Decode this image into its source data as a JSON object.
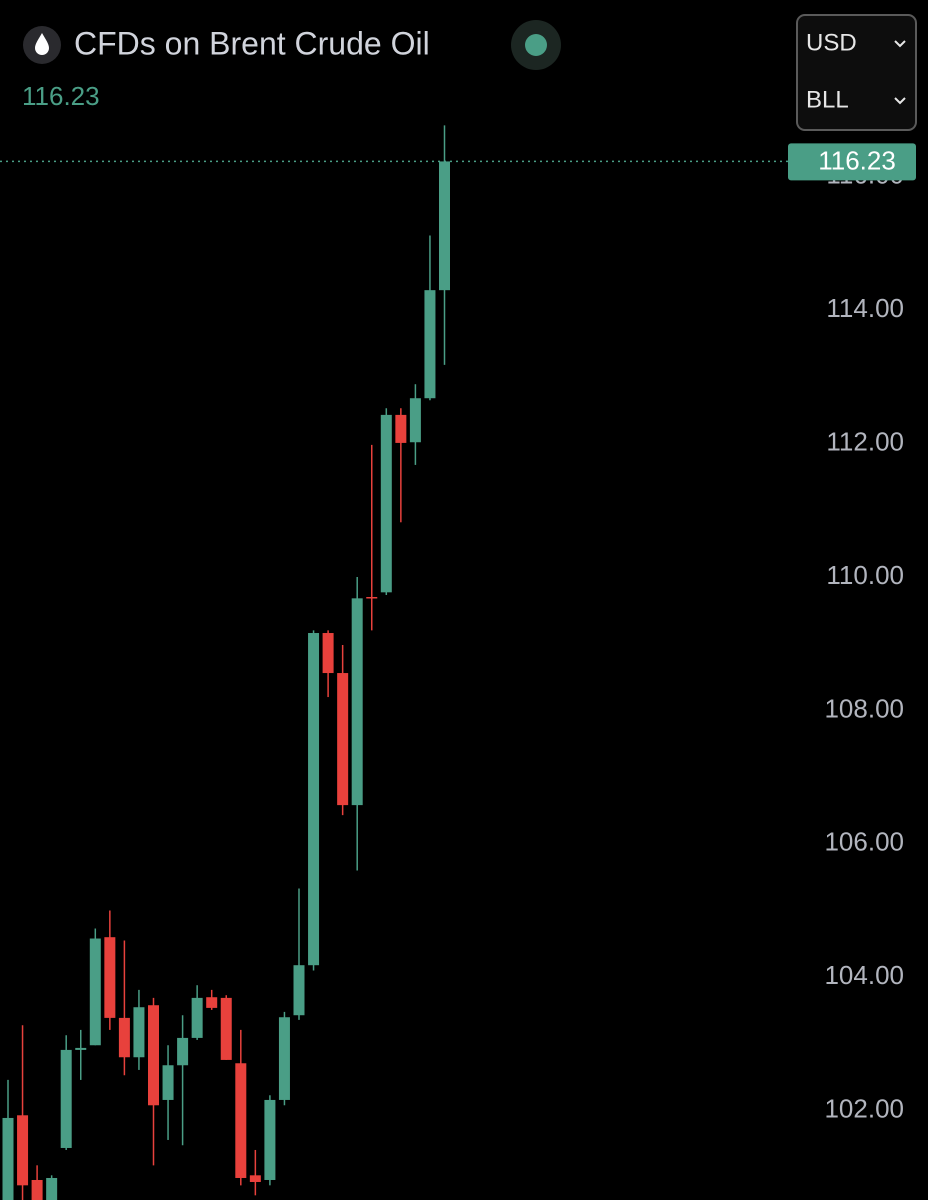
{
  "controls": [
    "USD",
    "BLL"
  ],
  "chart_data": {
    "type": "candlestick",
    "title": "CFDs on Brent Crude Oil",
    "up_color": "#4a9e86",
    "down_color": "#e8413c",
    "ylim": [
      100.66,
      118.65
    ],
    "yticks": [
      {
        "value": 102,
        "label": "102.00"
      },
      {
        "value": 104,
        "label": "104.00"
      },
      {
        "value": 106,
        "label": "106.00"
      },
      {
        "value": 108,
        "label": "108.00"
      },
      {
        "value": 110,
        "label": "110.00"
      },
      {
        "value": 112,
        "label": "112.00"
      },
      {
        "value": 114,
        "label": "114.00"
      },
      {
        "value": 116,
        "label": "116.00"
      }
    ],
    "open": [
      100.51,
      101.93,
      100.96,
      100.66,
      101.44,
      102.91,
      102.98,
      104.6,
      103.39,
      102.8,
      103.58,
      102.16,
      102.68,
      103.09,
      103.7,
      103.69,
      102.71,
      101.03,
      100.96,
      102.16,
      103.43,
      104.18,
      109.16,
      108.56,
      106.58,
      109.7,
      109.77,
      112.43,
      112.02,
      112.68,
      114.3
    ],
    "high": [
      102.46,
      103.28,
      101.18,
      101.03,
      103.13,
      103.21,
      104.73,
      105.0,
      104.55,
      103.81,
      103.69,
      102.98,
      103.43,
      103.88,
      103.81,
      103.73,
      103.21,
      101.41,
      102.23,
      103.48,
      105.33,
      109.2,
      109.2,
      108.98,
      110.0,
      111.98,
      112.53,
      112.53,
      112.89,
      115.12,
      116.77
    ],
    "low": [
      100.45,
      100.66,
      100.6,
      100.6,
      101.41,
      102.46,
      102.98,
      103.21,
      102.53,
      102.61,
      101.18,
      101.56,
      101.48,
      103.06,
      103.51,
      102.76,
      100.88,
      100.73,
      100.88,
      102.08,
      103.36,
      104.1,
      108.2,
      106.43,
      105.6,
      109.2,
      109.73,
      110.82,
      111.68,
      112.65,
      113.18
    ],
    "close": [
      101.89,
      100.88,
      100.66,
      100.99,
      102.91,
      102.94,
      104.58,
      103.39,
      102.8,
      103.55,
      102.08,
      102.68,
      103.09,
      103.69,
      103.54,
      102.76,
      100.99,
      100.93,
      102.16,
      103.4,
      104.18,
      109.16,
      108.56,
      106.58,
      109.68,
      109.68,
      112.43,
      112.01,
      112.68,
      114.3,
      116.23
    ]
  }
}
